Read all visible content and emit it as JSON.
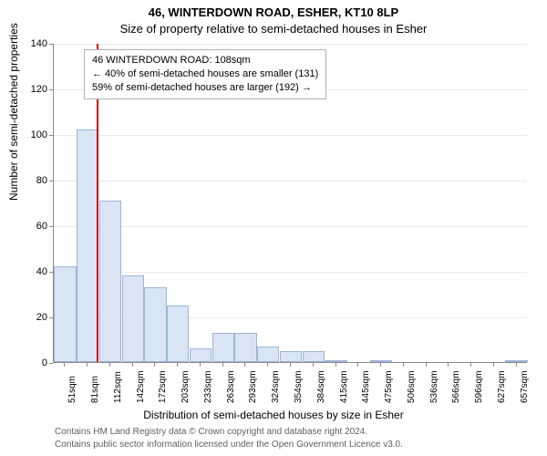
{
  "title_main": "46, WINTERDOWN ROAD, ESHER, KT10 8LP",
  "title_sub": "Size of property relative to semi-detached houses in Esher",
  "y_axis_label": "Number of semi-detached properties",
  "x_axis_label": "Distribution of semi-detached houses by size in Esher",
  "info_line1": "46 WINTERDOWN ROAD: 108sqm",
  "info_line2": "← 40% of semi-detached houses are smaller (131)",
  "info_line3": "59% of semi-detached houses are larger (192) →",
  "footer_line1": "Contains HM Land Registry data © Crown copyright and database right 2024.",
  "footer_line2": "Contains public sector information licensed under the Open Government Licence v3.0.",
  "chart": {
    "type": "histogram",
    "ylim": [
      0,
      140
    ],
    "ytick_step": 20,
    "yticks": [
      0,
      20,
      40,
      60,
      80,
      100,
      120,
      140
    ],
    "x_categories": [
      "51sqm",
      "81sqm",
      "112sqm",
      "142sqm",
      "172sqm",
      "203sqm",
      "233sqm",
      "263sqm",
      "293sqm",
      "324sqm",
      "354sqm",
      "384sqm",
      "415sqm",
      "445sqm",
      "475sqm",
      "506sqm",
      "536sqm",
      "566sqm",
      "596sqm",
      "627sqm",
      "657sqm"
    ],
    "bar_values": [
      42,
      102,
      71,
      38,
      33,
      25,
      6,
      13,
      13,
      7,
      5,
      5,
      1,
      0,
      1,
      0,
      0,
      0,
      0,
      0,
      1
    ],
    "bar_fill": "#d9e4f5",
    "bar_stroke": "#9db4d8",
    "grid_color": "#e8e8e8",
    "axis_color": "#8a8a8a",
    "background_color": "#ffffff",
    "marker_line_color": "#cc0000",
    "marker_line_index": 1.9,
    "title_fontsize": 13,
    "label_fontsize": 12,
    "tick_fontsize": 11
  }
}
